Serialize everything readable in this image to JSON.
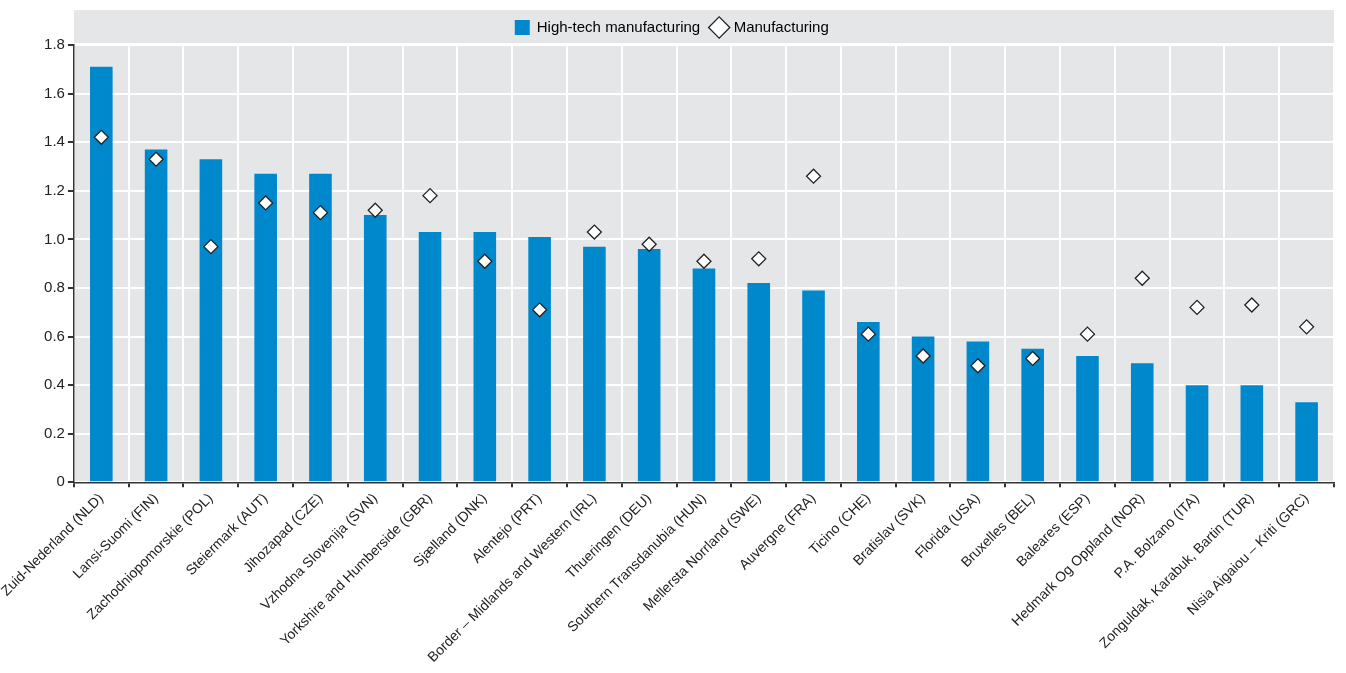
{
  "chart_data": {
    "type": "bar",
    "categories": [
      "Zuid-Nederland (NLD)",
      "Lansi-Suomi (FIN)",
      "Zachodniopomorskie (POL)",
      "Steiermark (AUT)",
      "Jihozapad (CZE)",
      "Vzhodna Slovenija (SVN)",
      "Yorkshire and Humberside (GBR)",
      "Sjælland (DNK)",
      "Alentejo (PRT)",
      "Border – Midlands and Western (IRL)",
      "Thueringen (DEU)",
      "Southern Transdanubia (HUN)",
      "Mellersta Norrland (SWE)",
      "Auvergne (FRA)",
      "Ticino (CHE)",
      "Bratislav (SVK)",
      "Florida (USA)",
      "Bruxelles (BEL)",
      "Baleares (ESP)",
      "Hedmark Og Oppland (NOR)",
      "P.A. Bolzano (ITA)",
      "Zonguldak, Karabuk, Bartin (TUR)",
      "Nisia Aigaiou – Kriti (GRC)"
    ],
    "series": [
      {
        "name": "High-tech manufacturing",
        "color": "#0088cc",
        "values": [
          1.71,
          1.37,
          1.33,
          1.27,
          1.27,
          1.1,
          1.03,
          1.03,
          1.01,
          0.97,
          0.96,
          0.88,
          0.82,
          0.79,
          0.66,
          0.6,
          0.58,
          0.55,
          0.52,
          0.49,
          0.4,
          0.4,
          0.33
        ]
      },
      {
        "name": "Manufacturing",
        "type": "scatter",
        "color": "#ffffff",
        "marker": "diamond",
        "values": [
          1.42,
          1.33,
          0.97,
          1.15,
          1.11,
          1.12,
          1.18,
          0.91,
          0.71,
          1.03,
          0.98,
          0.91,
          0.92,
          1.26,
          0.61,
          0.52,
          0.48,
          0.51,
          0.61,
          0.84,
          0.72,
          0.73,
          0.64
        ]
      }
    ],
    "ylim": [
      0,
      1.8
    ],
    "yticks": [
      0,
      0.2,
      0.4,
      0.6,
      0.8,
      {
        "value": 1,
        "label": "1.0"
      },
      1.2,
      1.4,
      1.6,
      1.8
    ],
    "grid": true,
    "legend": "top"
  }
}
